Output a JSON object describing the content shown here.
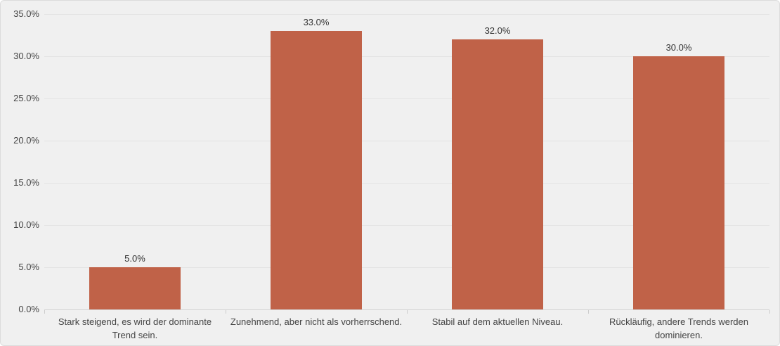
{
  "chart_data": {
    "type": "bar",
    "categories": [
      "Stark steigend, es wird der dominante Trend sein.",
      "Zunehmend, aber nicht als vorherrschend.",
      "Stabil auf dem aktuellen Niveau.",
      "Rückläufig, andere Trends werden dominieren."
    ],
    "values": [
      5.0,
      33.0,
      32.0,
      30.0
    ],
    "value_labels": [
      "5.0%",
      "33.0%",
      "32.0%",
      "30.0%"
    ],
    "y_ticks": [
      {
        "value": 0,
        "label": "0.0%"
      },
      {
        "value": 5,
        "label": "5.0%"
      },
      {
        "value": 10,
        "label": "10.0%"
      },
      {
        "value": 15,
        "label": "15.0%"
      },
      {
        "value": 20,
        "label": "20.0%"
      },
      {
        "value": 25,
        "label": "25.0%"
      },
      {
        "value": 30,
        "label": "30.0%"
      },
      {
        "value": 35,
        "label": "35.0%"
      }
    ],
    "ylim": [
      0,
      35
    ],
    "grid": true,
    "legend": "none",
    "colors": {
      "bar": "#c06248",
      "background": "#f0f0f0",
      "gridline": "#e3e3e3",
      "axis_line": "#d4d4d4",
      "tick_mark": "#cccccc",
      "tick_text": "#444444",
      "value_text": "#333333",
      "category_text": "#444444"
    }
  }
}
